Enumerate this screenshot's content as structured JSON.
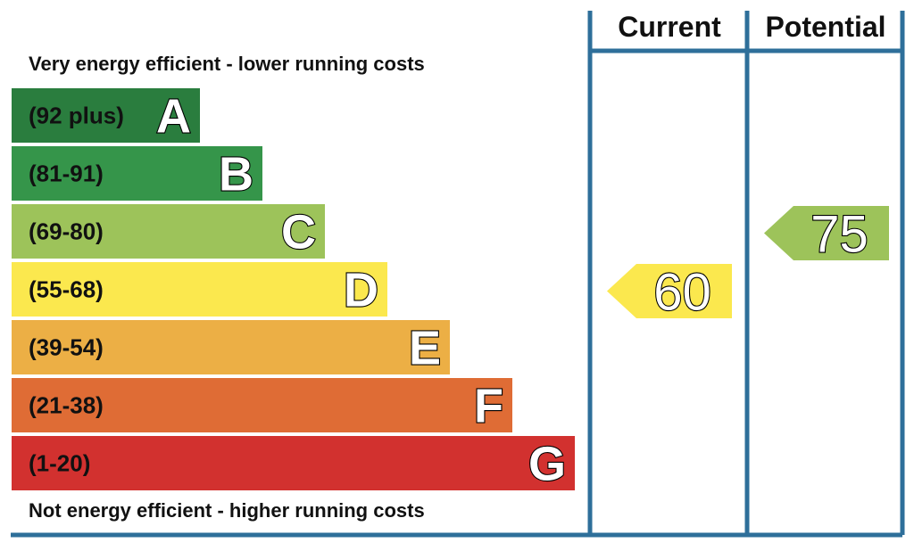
{
  "chart_data": {
    "type": "bar",
    "top_caption": "Very energy efficient - lower running costs",
    "bottom_caption": "Not energy efficient - higher running costs",
    "columns": [
      "Current",
      "Potential"
    ],
    "bands": [
      {
        "letter": "A",
        "range": "(92 plus)",
        "min": 92,
        "max": 100,
        "color": "#2a7d3e"
      },
      {
        "letter": "B",
        "range": "(81-91)",
        "min": 81,
        "max": 91,
        "color": "#35954a"
      },
      {
        "letter": "C",
        "range": "(69-80)",
        "min": 69,
        "max": 80,
        "color": "#9dc35a"
      },
      {
        "letter": "D",
        "range": "(55-68)",
        "min": 55,
        "max": 68,
        "color": "#fbe84e"
      },
      {
        "letter": "E",
        "range": "(39-54)",
        "min": 39,
        "max": 54,
        "color": "#ecaf45"
      },
      {
        "letter": "F",
        "range": "(21-38)",
        "min": 21,
        "max": 38,
        "color": "#df6c35"
      },
      {
        "letter": "G",
        "range": "(1-20)",
        "min": 1,
        "max": 20,
        "color": "#d2312f"
      }
    ],
    "ratings": [
      {
        "column": "Current",
        "value": 60,
        "band": "D"
      },
      {
        "column": "Potential",
        "value": 75,
        "band": "C"
      }
    ]
  }
}
